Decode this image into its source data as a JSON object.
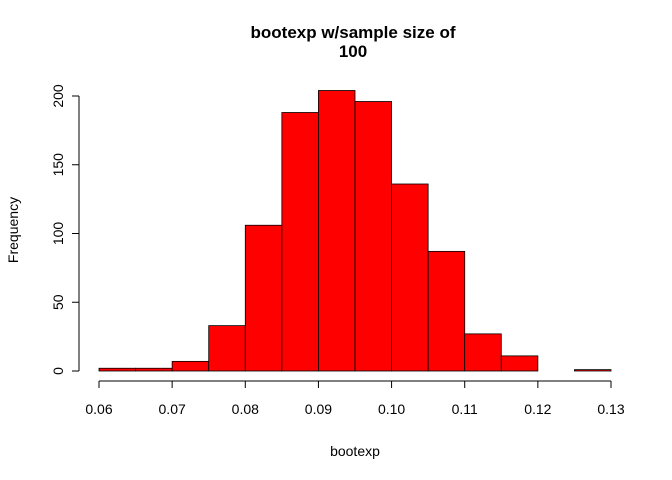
{
  "chart_data": {
    "type": "bar",
    "title_lines": [
      "bootexp w/sample size of",
      "100"
    ],
    "xlabel": "bootexp",
    "ylabel": "Frequency",
    "bins": [
      [
        0.06,
        0.065
      ],
      [
        0.065,
        0.07
      ],
      [
        0.07,
        0.075
      ],
      [
        0.075,
        0.08
      ],
      [
        0.08,
        0.085
      ],
      [
        0.085,
        0.09
      ],
      [
        0.09,
        0.095
      ],
      [
        0.095,
        0.1
      ],
      [
        0.1,
        0.105
      ],
      [
        0.105,
        0.11
      ],
      [
        0.11,
        0.115
      ],
      [
        0.115,
        0.12
      ],
      [
        0.12,
        0.125
      ],
      [
        0.125,
        0.13
      ]
    ],
    "values": [
      2,
      2,
      7,
      33,
      106,
      188,
      204,
      196,
      136,
      87,
      27,
      11,
      0,
      1
    ],
    "xlim": [
      0.06,
      0.13
    ],
    "ylim": [
      0,
      200
    ],
    "x_ticks": [
      0.06,
      0.07,
      0.08,
      0.09,
      0.1,
      0.11,
      0.12,
      0.13
    ],
    "x_tick_labels": [
      "0.06",
      "0.07",
      "0.08",
      "0.09",
      "0.10",
      "0.11",
      "0.12",
      "0.13"
    ],
    "y_ticks": [
      0,
      50,
      100,
      150,
      200
    ],
    "y_tick_labels": [
      "0",
      "50",
      "100",
      "150",
      "200"
    ],
    "bar_color": "#ff0000",
    "bar_border_color": "#000000",
    "grid": false,
    "legend": "none"
  }
}
